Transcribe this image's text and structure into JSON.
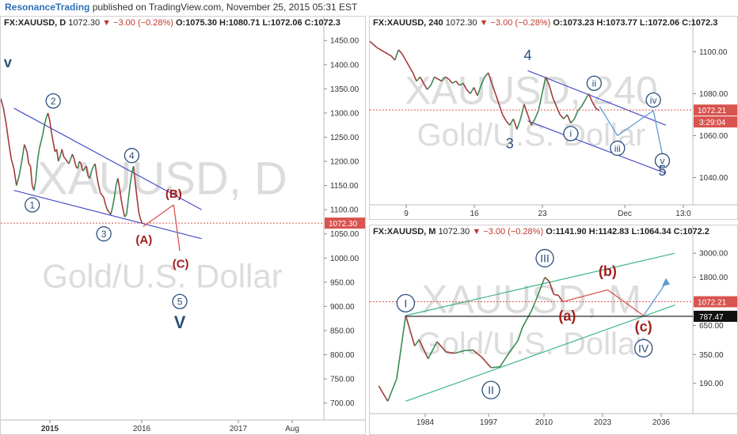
{
  "header": {
    "brand": "ResonanceTrading",
    "rest": " published on TradingView.com, November 25, 2015 05:31 EST"
  },
  "chart_data": [
    {
      "type": "line",
      "legend": {
        "symbol": "FX:XAUUSD, D",
        "price": "1072.30",
        "change": "▼ −3.00 (−0.28%)",
        "open": "O:1075.30",
        "high": "H:1080.71",
        "low": "L:1072.06",
        "close": "C:1072.3"
      },
      "watermark": [
        "XAUUSD, D",
        "Gold/U.S. Dollar"
      ],
      "y_ticks": [
        1450,
        1400,
        1350,
        1300,
        1250,
        1200,
        1150,
        1100,
        1050,
        1000,
        950,
        900,
        850,
        800,
        750,
        700
      ],
      "y_tick_labels": [
        "1450.00",
        "1400.00",
        "1350.00",
        "1300.00",
        "1250.00",
        "1200.00",
        "1150.00",
        "1100.00",
        "1050.00",
        "1000.00",
        "950.00",
        "900.00",
        "850.00",
        "800.00",
        "750.00",
        "700.00"
      ],
      "ylim": [
        665,
        1470
      ],
      "x_ticks": [
        "2015",
        "2016",
        "2017",
        "Aug"
      ],
      "last_price": "1072.30",
      "price_path": [
        [
          0,
          1330
        ],
        [
          3,
          1310
        ],
        [
          6,
          1280
        ],
        [
          9,
          1240
        ],
        [
          12,
          1205
        ],
        [
          15,
          1185
        ],
        [
          18,
          1150
        ],
        [
          21,
          1170
        ],
        [
          24,
          1200
        ],
        [
          27,
          1235
        ],
        [
          30,
          1220
        ],
        [
          32,
          1195
        ],
        [
          34,
          1190
        ],
        [
          36,
          1150
        ],
        [
          38,
          1140
        ],
        [
          40,
          1160
        ],
        [
          42,
          1200
        ],
        [
          44,
          1225
        ],
        [
          46,
          1240
        ],
        [
          48,
          1255
        ],
        [
          50,
          1275
        ],
        [
          52,
          1290
        ],
        [
          54,
          1300
        ],
        [
          56,
          1285
        ],
        [
          58,
          1260
        ],
        [
          60,
          1240
        ],
        [
          62,
          1220
        ],
        [
          64,
          1225
        ],
        [
          66,
          1200
        ],
        [
          68,
          1210
        ],
        [
          70,
          1225
        ],
        [
          72,
          1210
        ],
        [
          74,
          1205
        ],
        [
          76,
          1200
        ],
        [
          78,
          1195
        ],
        [
          80,
          1205
        ],
        [
          82,
          1215
        ],
        [
          84,
          1205
        ],
        [
          86,
          1190
        ],
        [
          88,
          1185
        ],
        [
          90,
          1200
        ],
        [
          92,
          1195
        ],
        [
          94,
          1180
        ],
        [
          96,
          1185
        ],
        [
          98,
          1190
        ],
        [
          100,
          1170
        ],
        [
          102,
          1165
        ],
        [
          104,
          1180
        ],
        [
          106,
          1190
        ],
        [
          108,
          1195
        ],
        [
          110,
          1170
        ],
        [
          112,
          1150
        ],
        [
          114,
          1135
        ],
        [
          116,
          1130
        ],
        [
          118,
          1125
        ],
        [
          120,
          1110
        ],
        [
          122,
          1100
        ],
        [
          124,
          1095
        ],
        [
          126,
          1090
        ],
        [
          128,
          1105
        ],
        [
          130,
          1125
        ],
        [
          132,
          1150
        ],
        [
          134,
          1165
        ],
        [
          136,
          1145
        ],
        [
          138,
          1120
        ],
        [
          140,
          1100
        ],
        [
          142,
          1085
        ],
        [
          144,
          1090
        ],
        [
          146,
          1120
        ],
        [
          148,
          1150
        ],
        [
          150,
          1175
        ],
        [
          152,
          1190
        ],
        [
          154,
          1155
        ],
        [
          156,
          1125
        ],
        [
          158,
          1095
        ],
        [
          160,
          1080
        ],
        [
          162,
          1072
        ]
      ],
      "upper_channel": [
        [
          15,
          1310
        ],
        [
          230,
          1100
        ]
      ],
      "lower_channel": [
        [
          15,
          1140
        ],
        [
          230,
          1040
        ]
      ],
      "projection": [
        [
          163,
          1065
        ],
        [
          198,
          1110
        ],
        [
          205,
          1015
        ]
      ],
      "wave_labels": [
        {
          "text": "v",
          "x": 8,
          "y": 1395
        },
        {
          "text": "2",
          "x": 60,
          "y": 1325
        },
        {
          "text": "4",
          "x": 150,
          "y": 1212
        },
        {
          "text": "1",
          "x": 36,
          "y": 1110
        },
        {
          "text": "3",
          "x": 118,
          "y": 1050
        },
        {
          "text": "5",
          "x": 205,
          "y": 910
        },
        {
          "text": "V",
          "x": 205,
          "y": 855
        }
      ],
      "wave_labels_red": [
        {
          "text": "(B)",
          "x": 198,
          "y": 1125
        },
        {
          "text": "(A)",
          "x": 164,
          "y": 1030
        },
        {
          "text": "(C)",
          "x": 206,
          "y": 980
        }
      ]
    },
    {
      "type": "line",
      "legend": {
        "symbol": "FX:XAUUSD, 240",
        "price": "1072.30",
        "change": "▼ −3.00 (−0.28%)",
        "open": "O:1073.23",
        "high": "H:1073.77",
        "low": "L:1072.06",
        "close": "C:1072.3"
      },
      "watermark": [
        "XAUUSD, 240",
        "Gold/U.S. Dollar"
      ],
      "y_ticks": [
        1100,
        1080,
        1060,
        1040
      ],
      "y_tick_labels": [
        "1100.00",
        "1080.00",
        "1060.00",
        "1040.00"
      ],
      "ylim": [
        1027,
        1110
      ],
      "x_ticks": [
        "9",
        "16",
        "23",
        "Dec",
        "13:0"
      ],
      "last_price": "1072.21",
      "countdown": "3:29:04",
      "price_path": [
        [
          0,
          1105
        ],
        [
          4,
          1102
        ],
        [
          8,
          1100
        ],
        [
          12,
          1098
        ],
        [
          14,
          1096
        ],
        [
          16,
          1101
        ],
        [
          18,
          1099
        ],
        [
          20,
          1096
        ],
        [
          22,
          1093
        ],
        [
          24,
          1090
        ],
        [
          26,
          1086
        ],
        [
          28,
          1088
        ],
        [
          30,
          1085
        ],
        [
          32,
          1082
        ],
        [
          34,
          1084
        ],
        [
          36,
          1088
        ],
        [
          38,
          1087
        ],
        [
          40,
          1086
        ],
        [
          42,
          1088
        ],
        [
          44,
          1087
        ],
        [
          46,
          1085
        ],
        [
          48,
          1086
        ],
        [
          50,
          1084
        ],
        [
          52,
          1085
        ],
        [
          54,
          1082
        ],
        [
          56,
          1080
        ],
        [
          58,
          1083
        ],
        [
          60,
          1079
        ],
        [
          62,
          1084
        ],
        [
          64,
          1088
        ],
        [
          66,
          1090
        ],
        [
          68,
          1085
        ],
        [
          70,
          1080
        ],
        [
          72,
          1075
        ],
        [
          74,
          1070
        ],
        [
          76,
          1067
        ],
        [
          78,
          1065
        ],
        [
          80,
          1068
        ],
        [
          82,
          1063
        ],
        [
          84,
          1068
        ],
        [
          86,
          1075
        ],
        [
          88,
          1070
        ],
        [
          90,
          1065
        ],
        [
          92,
          1068
        ],
        [
          94,
          1072
        ],
        [
          96,
          1080
        ],
        [
          98,
          1088
        ],
        [
          100,
          1084
        ],
        [
          102,
          1078
        ],
        [
          104,
          1074
        ],
        [
          106,
          1070
        ],
        [
          108,
          1068
        ],
        [
          110,
          1070
        ],
        [
          112,
          1066
        ],
        [
          114,
          1068
        ],
        [
          116,
          1072
        ],
        [
          118,
          1074
        ],
        [
          120,
          1077
        ],
        [
          122,
          1080
        ],
        [
          124,
          1076
        ],
        [
          126,
          1073
        ],
        [
          128,
          1072
        ]
      ],
      "upper_channel": [
        [
          88,
          1091
        ],
        [
          165,
          1065
        ]
      ],
      "lower_channel": [
        [
          88,
          1067
        ],
        [
          165,
          1042
        ]
      ],
      "projection": [
        [
          128,
          1074
        ],
        [
          138,
          1060
        ],
        [
          158,
          1072
        ],
        [
          163,
          1051
        ]
      ],
      "wave_labels": [
        {
          "text": "4",
          "x": 88,
          "y": 1096
        },
        {
          "text": "ii",
          "x": 125,
          "y": 1085
        },
        {
          "text": "iv",
          "x": 158,
          "y": 1077
        },
        {
          "text": "i",
          "x": 112,
          "y": 1061
        },
        {
          "text": "3",
          "x": 78,
          "y": 1054
        },
        {
          "text": "iii",
          "x": 138,
          "y": 1054
        },
        {
          "text": "v",
          "x": 163,
          "y": 1048
        },
        {
          "text": "5",
          "x": 163,
          "y": 1041
        }
      ]
    },
    {
      "type": "line",
      "legend": {
        "symbol": "FX:XAUUSD, M",
        "price": "1072.30",
        "change": "▼ −3.00 (−0.28%)",
        "open": "O:1141.90",
        "high": "H:1142.83",
        "low": "L:1064.34",
        "close": "C:1072.2"
      },
      "watermark": [
        "XAUUSD, M",
        "Gold/U.S. Dollar"
      ],
      "y_ticks": [
        3000,
        1800,
        1072.21,
        787.47,
        650,
        350,
        190
      ],
      "y_tick_labels": [
        "3000.00",
        "1800.00",
        "1072.21",
        "787.47",
        "650.00",
        "350.00",
        "190.00"
      ],
      "ylim": [
        100,
        4000
      ],
      "x_ticks": [
        "1984",
        "1997",
        "2010",
        "2023",
        "2036"
      ],
      "last_price": "1072.21",
      "level": "787.47",
      "price_path": [
        [
          1974,
          180
        ],
        [
          1976,
          130
        ],
        [
          1978,
          210
        ],
        [
          1980,
          800
        ],
        [
          1982,
          420
        ],
        [
          1983,
          480
        ],
        [
          1985,
          320
        ],
        [
          1987,
          460
        ],
        [
          1989,
          370
        ],
        [
          1991,
          360
        ],
        [
          1993,
          380
        ],
        [
          1995,
          385
        ],
        [
          1997,
          330
        ],
        [
          1999,
          265
        ],
        [
          2001,
          270
        ],
        [
          2003,
          360
        ],
        [
          2005,
          470
        ],
        [
          2006,
          620
        ],
        [
          2008,
          880
        ],
        [
          2009,
          1100
        ],
        [
          2011,
          1800
        ],
        [
          2012,
          1650
        ],
        [
          2013,
          1250
        ],
        [
          2014,
          1230
        ],
        [
          2015,
          1072
        ]
      ],
      "upper_channel": [
        [
          1980,
          800
        ],
        [
          2040,
          3000
        ]
      ],
      "lower_channel": [
        [
          1980,
          130
        ],
        [
          2040,
          1000
        ]
      ],
      "projection": [
        [
          2015,
          1072
        ],
        [
          2025,
          1380
        ],
        [
          2033,
          800
        ],
        [
          2038,
          1600
        ]
      ],
      "wave_labels": [
        {
          "text": "I",
          "x": 1980,
          "y": 1040
        },
        {
          "text": "III",
          "x": 2011,
          "y": 2700
        },
        {
          "text": "II",
          "x": 1999,
          "y": 165
        },
        {
          "text": "IV",
          "x": 2033,
          "y": 400
        }
      ],
      "wave_labels_red": [
        {
          "text": "(b)",
          "x": 2025,
          "y": 1850
        },
        {
          "text": "(a)",
          "x": 2016,
          "y": 720
        },
        {
          "text": "(c)",
          "x": 2033,
          "y": 570
        }
      ]
    }
  ]
}
